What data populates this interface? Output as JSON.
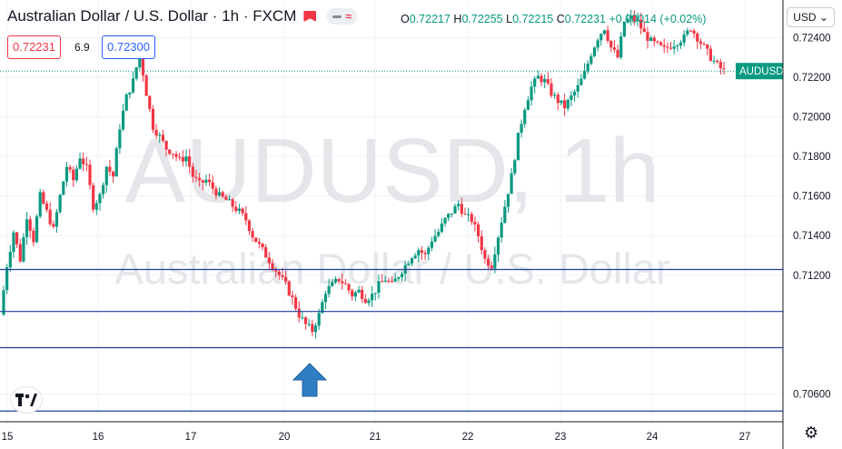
{
  "header": {
    "title": "Australian Dollar / U.S. Dollar · 1h · FXCM",
    "ohlc": {
      "open_label": "O",
      "open": "0.72217",
      "high_label": "H",
      "high": "0.72255",
      "low_label": "L",
      "low": "0.72215",
      "close_label": "C",
      "close": "0.72231",
      "change": "+0.00014 (+0.02%)"
    },
    "bid": "0.72231",
    "spread": "6.9",
    "ask": "0.72300",
    "currency": "USD"
  },
  "watermark": {
    "symbol": "AUDUSD, 1h",
    "name": "Australian Dollar / U.S. Dollar"
  },
  "colors": {
    "up": "#089981",
    "down": "#f23645",
    "level_line": "#1f3f9f",
    "price_tag": "#089981",
    "arrow": "#2f7ec4"
  },
  "icons": {
    "logo": "tradingview-logo-icon",
    "settings": "gear-icon",
    "marker": "arrow-up-icon"
  },
  "chart_data": {
    "type": "candlestick",
    "symbol": "AUDUSD",
    "timeframe": "1h",
    "y_axis": {
      "ticks": [
        "0.72400",
        "0.72200",
        "0.72000",
        "0.71800",
        "0.71600",
        "0.71400",
        "0.71200",
        "0.70600"
      ],
      "range": [
        0.7046,
        0.7259
      ]
    },
    "x_axis": {
      "ticks": [
        "15",
        "16",
        "17",
        "20",
        "21",
        "22",
        "23",
        "24",
        "27"
      ]
    },
    "current_price": {
      "label": "AUDUSD",
      "value": "0.72231"
    },
    "horizontal_levels": [
      {
        "value": "0.71229"
      },
      {
        "value": "0.71017"
      },
      {
        "value": "0.70834"
      },
      {
        "value": "0.70514"
      }
    ],
    "annotation": {
      "type": "arrow-up",
      "at_category": 20
    },
    "path": [
      0.71,
      0.7125,
      0.7142,
      0.7128,
      0.715,
      0.7138,
      0.716,
      0.7152,
      0.7143,
      0.716,
      0.7175,
      0.7168,
      0.718,
      0.7174,
      0.7155,
      0.716,
      0.7175,
      0.717,
      0.7195,
      0.721,
      0.7218,
      0.7232,
      0.7212,
      0.7195,
      0.719,
      0.7184,
      0.7182,
      0.7178,
      0.718,
      0.717,
      0.7166,
      0.7168,
      0.7164,
      0.716,
      0.7158,
      0.7155,
      0.7152,
      0.7148,
      0.714,
      0.7135,
      0.713,
      0.7125,
      0.712,
      0.7115,
      0.7108,
      0.71,
      0.7095,
      0.7092,
      0.71,
      0.7112,
      0.7115,
      0.7118,
      0.7115,
      0.711,
      0.7112,
      0.7108,
      0.711,
      0.7115,
      0.7118,
      0.7115,
      0.712,
      0.7125,
      0.713,
      0.7133,
      0.713,
      0.7138,
      0.7142,
      0.7148,
      0.7152,
      0.7156,
      0.715,
      0.7148,
      0.714,
      0.7128,
      0.7125,
      0.714,
      0.7155,
      0.717,
      0.719,
      0.7205,
      0.7215,
      0.722,
      0.7218,
      0.7212,
      0.7208,
      0.7205,
      0.721,
      0.7215,
      0.7222,
      0.7232,
      0.724,
      0.7245,
      0.7235,
      0.723,
      0.7248,
      0.725,
      0.7248,
      0.7242,
      0.7238,
      0.7236,
      0.7234,
      0.7236,
      0.7238,
      0.724,
      0.7245,
      0.724,
      0.7235,
      0.723,
      0.7226,
      0.7223
    ]
  }
}
